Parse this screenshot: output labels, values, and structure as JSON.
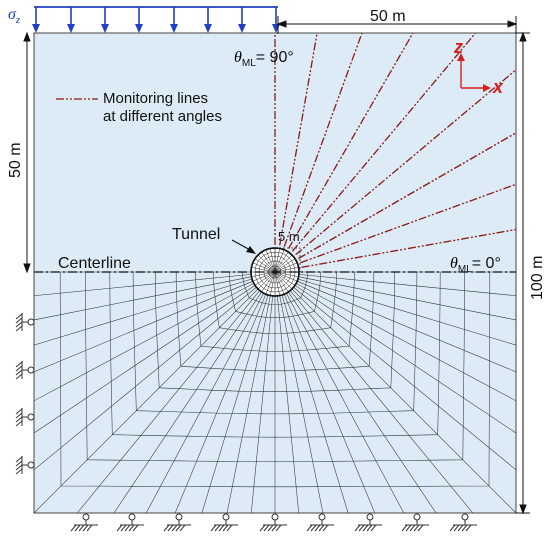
{
  "labels": {
    "load_symbol": "σ",
    "load_subscript": "z",
    "top_dimension": "50 m",
    "left_dimension": "50 m",
    "right_dimension": "100 m",
    "theta_symbol": "θ",
    "theta_subscript": "ML",
    "theta_top_value": "= 90°",
    "theta_right_value": "= 0°",
    "legend_line1": "Monitoring lines",
    "legend_line2": "at different angles",
    "tunnel_label": "Tunnel",
    "radius_label": "5 m",
    "centerline_label": "Centerline",
    "axis_z": "z",
    "axis_x": "x"
  },
  "monitoring_line_angles_deg": [
    0,
    10,
    20,
    30,
    40,
    50,
    60,
    70,
    80,
    90
  ],
  "colors": {
    "domain_fill": "#dcebf6",
    "load_arrows": "#1f3fc4",
    "monitoring_lines": "#8b1a1a",
    "axis_arrows": "#d62020",
    "mesh": "#333333",
    "support": "#333333"
  }
}
